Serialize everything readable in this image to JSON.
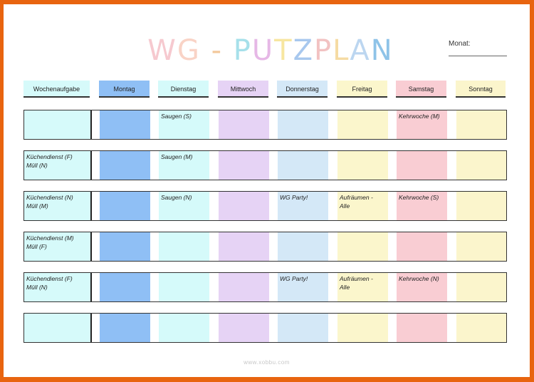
{
  "title_letters": [
    {
      "ch": "W",
      "color": "#f6c9cf"
    },
    {
      "ch": "G",
      "color": "#f9d3c6"
    },
    {
      "ch": " ",
      "color": "#ffffff"
    },
    {
      "ch": "-",
      "color": "#f3c89a"
    },
    {
      "ch": " ",
      "color": "#ffffff"
    },
    {
      "ch": "P",
      "color": "#a6e0ea"
    },
    {
      "ch": "U",
      "color": "#e6b8e6"
    },
    {
      "ch": "T",
      "color": "#f7e6a0"
    },
    {
      "ch": "Z",
      "color": "#a8c8ee"
    },
    {
      "ch": "P",
      "color": "#f2c2c2"
    },
    {
      "ch": "L",
      "color": "#f5dba3"
    },
    {
      "ch": "A",
      "color": "#bcd6f0"
    },
    {
      "ch": "N",
      "color": "#8ec3e8"
    }
  ],
  "monat_label": "Monat:",
  "headers": [
    "Wochenaufgabe",
    "Montag",
    "Dienstag",
    "Mittwoch",
    "Donnerstag",
    "Freitag",
    "Samstag",
    "Sonntag"
  ],
  "colors": [
    "#d6fafa",
    "#8fbff5",
    "#d5fafa",
    "#e6d3f5",
    "#d4e8f7",
    "#fbf6cc",
    "#f9cdd3",
    "#fbf5cc"
  ],
  "rows": [
    {
      "cells": [
        "",
        "",
        "Saugen (S)",
        "",
        "",
        "",
        "Kehrwoche (M)",
        ""
      ]
    },
    {
      "cells": [
        "Küchendienst (F)\nMüll (N)",
        "",
        "Saugen (M)",
        "",
        "",
        "",
        "",
        ""
      ]
    },
    {
      "cells": [
        "Küchendienst (N)\nMüll (M)",
        "",
        "Saugen (N)",
        "",
        "WG Party!",
        "Aufräumen -\nAlle",
        "Kehrwoche (S)",
        ""
      ]
    },
    {
      "cells": [
        "Küchendienst (M)\nMüll (F)",
        "",
        "",
        "",
        "",
        "",
        "",
        ""
      ]
    },
    {
      "cells": [
        " Küchendienst (F)\nMüll (N)",
        "",
        "",
        "",
        "WG Party!",
        "Aufräumen -\nAlle",
        "Kehrwoche (N)",
        ""
      ]
    },
    {
      "cells": [
        "",
        "",
        "",
        "",
        "",
        "",
        "",
        ""
      ]
    }
  ],
  "footer": "www.xobbu.com"
}
